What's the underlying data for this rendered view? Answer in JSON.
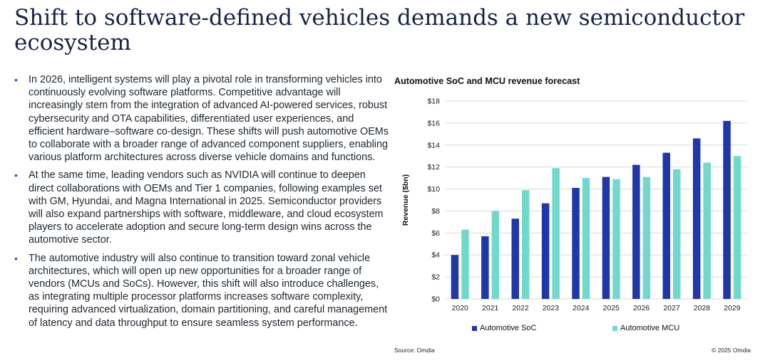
{
  "title": "Shift to software-defined vehicles demands a new semiconductor ecosystem",
  "bullets": [
    "In 2026, intelligent systems will play a pivotal role in transforming vehicles into continuously evolving software platforms. Competitive advantage will increasingly stem from the integration of advanced AI-powered services, robust cybersecurity and OTA capabilities, differentiated user experiences, and efficient hardware–software co-design. These shifts will push automotive OEMs to collaborate with a broader range of advanced component suppliers, enabling various platform architectures across diverse vehicle domains and functions.",
    "At the same time, leading vendors such as NVIDIA will continue to deepen direct collaborations with OEMs and Tier 1 companies, following examples set with GM, Hyundai, and Magna International in 2025. Semiconductor providers will also expand partnerships with software, middleware, and cloud ecosystem players to accelerate adoption and secure long-term design wins across the automotive sector.",
    "The automotive industry will also continue to transition toward zonal vehicle architectures, which will open up new opportunities for a broader range of vendors (MCUs and SoCs). However, this shift will also introduce challenges, as integrating multiple processor platforms increases software complexity, requiring advanced virtualization, domain partitioning, and careful management of latency and data throughput to ensure seamless system performance."
  ],
  "colors": {
    "soc": "#1f37a8",
    "mcu": "#71d9cb",
    "grid": "#d9d9d9",
    "title": "#162443",
    "bullet": "#2a5fb8"
  },
  "chart_data": {
    "type": "bar",
    "title": "Automotive SoC and MCU revenue forecast",
    "xlabel": "",
    "ylabel": "Revenue ($bn)",
    "ylim": [
      0,
      18
    ],
    "yticks": [
      0,
      2,
      4,
      6,
      8,
      10,
      12,
      14,
      16,
      18
    ],
    "ytick_labels": [
      "$0",
      "$2",
      "$4",
      "$6",
      "$8",
      "$10",
      "$12",
      "$14",
      "$16",
      "$18"
    ],
    "categories": [
      "2020",
      "2021",
      "2022",
      "2023",
      "2024",
      "2025",
      "2026",
      "2027",
      "2028",
      "2029"
    ],
    "series": [
      {
        "name": "Automotive SoC",
        "values": [
          4.0,
          5.7,
          7.3,
          8.7,
          10.1,
          11.1,
          12.2,
          13.3,
          14.6,
          16.2
        ]
      },
      {
        "name": "Automotive MCU",
        "values": [
          6.3,
          8.0,
          9.9,
          11.9,
          11.0,
          10.9,
          11.1,
          11.8,
          12.4,
          13.0
        ]
      }
    ],
    "grid": true,
    "legend": "bottom"
  },
  "footer": {
    "source": "Source: Omdia",
    "copyright": "© 2025 Omdia"
  }
}
